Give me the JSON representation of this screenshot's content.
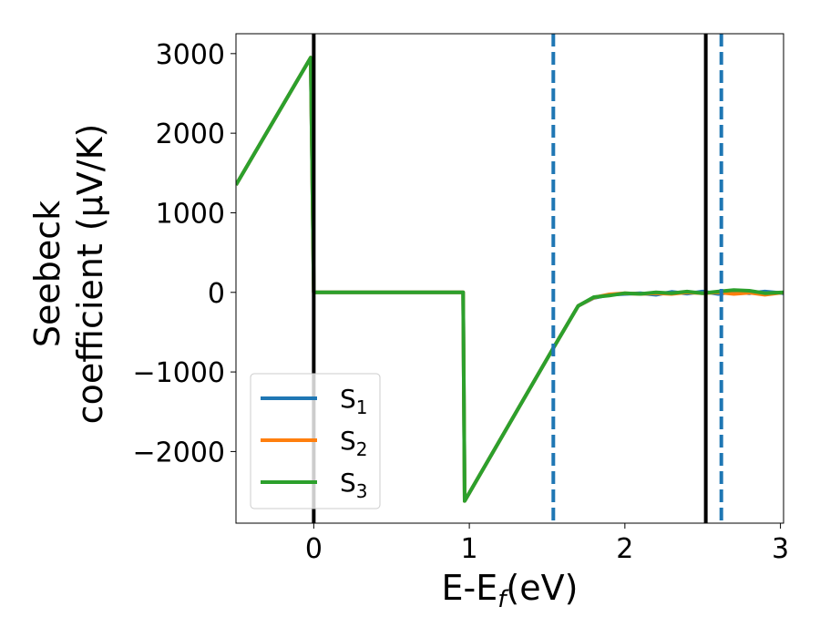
{
  "chart_data": {
    "type": "line",
    "xlabel": "E-E",
    "xlabel_sub": "f",
    "xlabel_unit": "(eV)",
    "ylabel_line1": "Seebeck",
    "ylabel_line2": "coefficient",
    "ylabel_unit": "(μV/K)",
    "xlim": [
      -0.5,
      3.02
    ],
    "ylim": [
      -2900,
      3250
    ],
    "x_ticks": [
      0,
      1,
      2,
      3
    ],
    "x_tick_labels": [
      "0",
      "1",
      "2",
      "3"
    ],
    "y_ticks": [
      3000,
      2000,
      1000,
      0,
      -1000,
      -2000
    ],
    "y_tick_labels": [
      "3000",
      "2000",
      "1000",
      "0",
      "−1000",
      "−2000"
    ],
    "grid": false,
    "legend_position": "lower-left",
    "vertical_lines": [
      {
        "x": 0.0,
        "style": "solid",
        "color": "#000000"
      },
      {
        "x": 2.52,
        "style": "solid",
        "color": "#000000"
      },
      {
        "x": 1.54,
        "style": "dashed",
        "color": "#1f77b4"
      },
      {
        "x": 2.62,
        "style": "dashed",
        "color": "#1f77b4"
      }
    ],
    "series": [
      {
        "name": "S",
        "name_sub": "1",
        "color": "#1f77b4",
        "x": [
          -0.5,
          -0.02,
          0.0,
          0.96,
          0.97,
          1.54,
          1.7,
          1.8,
          1.9,
          2.0,
          2.1,
          2.2,
          2.3,
          2.4,
          2.5,
          2.6,
          2.7,
          2.8,
          2.9,
          3.02
        ],
        "y": [
          1350,
          2950,
          0,
          0,
          -2620,
          -700,
          -170,
          -70,
          -30,
          -20,
          -10,
          -30,
          5,
          -15,
          10,
          -20,
          5,
          -10,
          10,
          -10
        ]
      },
      {
        "name": "S",
        "name_sub": "2",
        "color": "#ff7f0e",
        "x": [
          -0.5,
          -0.02,
          0.0,
          0.96,
          0.97,
          1.54,
          1.7,
          1.8,
          1.9,
          2.0,
          2.1,
          2.2,
          2.3,
          2.4,
          2.5,
          2.6,
          2.7,
          2.8,
          2.9,
          3.02
        ],
        "y": [
          1350,
          2950,
          0,
          0,
          -2620,
          -700,
          -170,
          -65,
          -25,
          -10,
          -20,
          -10,
          -20,
          0,
          -10,
          0,
          -20,
          -5,
          -30,
          0
        ]
      },
      {
        "name": "S",
        "name_sub": "3",
        "color": "#2ca02c",
        "x": [
          -0.5,
          -0.02,
          0.0,
          0.96,
          0.97,
          1.54,
          1.7,
          1.8,
          1.9,
          2.0,
          2.1,
          2.2,
          2.3,
          2.4,
          2.5,
          2.6,
          2.7,
          2.8,
          2.9,
          3.02
        ],
        "y": [
          1350,
          2950,
          0,
          0,
          -2620,
          -700,
          -170,
          -60,
          -40,
          -10,
          -20,
          0,
          -10,
          10,
          -10,
          10,
          30,
          20,
          -10,
          0
        ]
      }
    ]
  }
}
